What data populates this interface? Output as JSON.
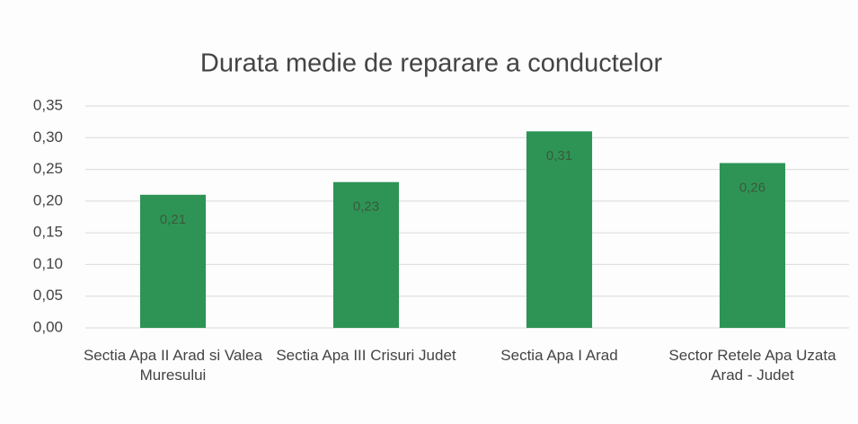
{
  "chart_data": {
    "type": "bar",
    "title": "Durata medie de reparare a conductelor",
    "categories": [
      "Sectia Apa II Arad si Valea Muresului",
      "Sectia Apa III Crisuri Judet",
      "Sectia Apa I Arad",
      "Sector Retele Apa Uzata Arad - Judet"
    ],
    "values": [
      0.21,
      0.23,
      0.31,
      0.26
    ],
    "value_labels": [
      "0,21",
      "0,23",
      "0,31",
      "0,26"
    ],
    "color": "#2e9456",
    "ylim": [
      0,
      0.35
    ],
    "yticks": [
      {
        "value": 0,
        "label": "0,00"
      },
      {
        "value": 0.05,
        "label": "0,05"
      },
      {
        "value": 0.1,
        "label": "0,10"
      },
      {
        "value": 0.15,
        "label": "0,15"
      },
      {
        "value": 0.2,
        "label": "0,20"
      },
      {
        "value": 0.25,
        "label": "0,25"
      },
      {
        "value": 0.3,
        "label": "0,30"
      },
      {
        "value": 0.35,
        "label": "0,35"
      }
    ],
    "grid": true
  }
}
